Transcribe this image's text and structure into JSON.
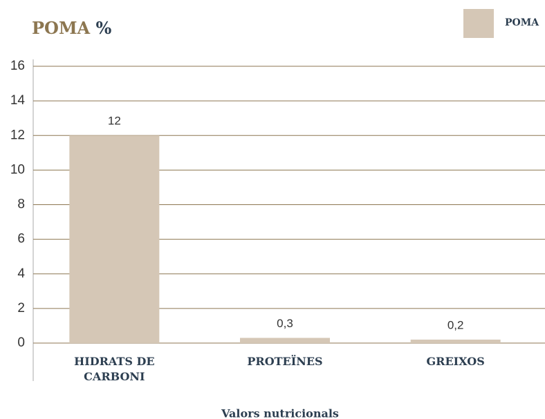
{
  "chart_data": {
    "type": "bar",
    "title": {
      "name": "POMA",
      "unit": "%"
    },
    "categories": [
      "HIDRATS DE CARBONI",
      "PROTEÏNES",
      "GREIXOS"
    ],
    "values": [
      12,
      0.3,
      0.2
    ],
    "value_labels": [
      "12",
      "0,3",
      "0,2"
    ],
    "series_name": "POMA",
    "color": "#d5c7b6",
    "xlabel": "Valors nutricionals",
    "ylim": [
      0,
      16
    ],
    "yticks": [
      0,
      2,
      4,
      6,
      8,
      10,
      12,
      14,
      16
    ],
    "grid": true,
    "legend": "top-right"
  }
}
